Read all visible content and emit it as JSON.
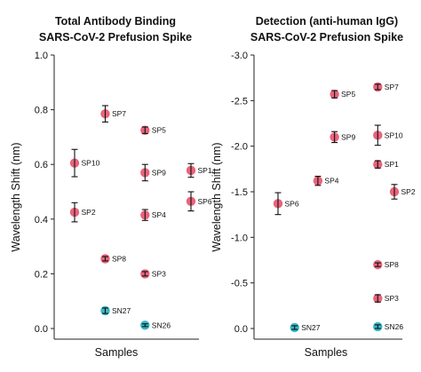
{
  "chart_data": [
    {
      "type": "scatter",
      "title": [
        "Total Antibody Binding",
        "SARS-CoV-2 Prefusion Spike"
      ],
      "xlabel": "Samples",
      "ylabel": "Wavelength Shift (nm)",
      "ylim": [
        0.0,
        1.0
      ],
      "yticks": [
        "0.0",
        "0.2",
        "0.4",
        "0.6",
        "0.8",
        "1.0"
      ],
      "reversed": false,
      "grid": false,
      "points": [
        {
          "label": "SP7",
          "x": 2,
          "y": 0.785,
          "err": 0.03,
          "color": "#e8647a"
        },
        {
          "label": "SP5",
          "x": 3.3,
          "y": 0.725,
          "err": 0.012,
          "color": "#e8647a"
        },
        {
          "label": "SP10",
          "x": 1,
          "y": 0.605,
          "err": 0.05,
          "color": "#e8647a"
        },
        {
          "label": "SP9",
          "x": 3.3,
          "y": 0.57,
          "err": 0.03,
          "color": "#e8647a"
        },
        {
          "label": "SP1",
          "x": 4.8,
          "y": 0.578,
          "err": 0.025,
          "color": "#e8647a"
        },
        {
          "label": "SP6",
          "x": 4.8,
          "y": 0.465,
          "err": 0.035,
          "color": "#e8647a"
        },
        {
          "label": "SP2",
          "x": 1,
          "y": 0.425,
          "err": 0.035,
          "color": "#e8647a"
        },
        {
          "label": "SP4",
          "x": 3.3,
          "y": 0.415,
          "err": 0.02,
          "color": "#e8647a"
        },
        {
          "label": "SP8",
          "x": 2,
          "y": 0.255,
          "err": 0.008,
          "color": "#e8647a"
        },
        {
          "label": "SP3",
          "x": 3.3,
          "y": 0.2,
          "err": 0.008,
          "color": "#e8647a"
        },
        {
          "label": "SN27",
          "x": 2,
          "y": 0.065,
          "err": 0.01,
          "color": "#37b8c6"
        },
        {
          "label": "SN26",
          "x": 3.3,
          "y": 0.012,
          "err": 0.005,
          "color": "#37b8c6"
        }
      ]
    },
    {
      "type": "scatter",
      "title": [
        "Detection (anti-human IgG)",
        "SARS-CoV-2 Prefusion Spike"
      ],
      "xlabel": "Samples",
      "ylabel": "Wavelength Shift (nm)",
      "ylim": [
        0.0,
        -3.0
      ],
      "yticks": [
        "0.0",
        "-0.5",
        "-1.0",
        "-1.5",
        "-2.0",
        "-2.5",
        "-3.0"
      ],
      "reversed": true,
      "grid": false,
      "points": [
        {
          "label": "SP7",
          "x": 4,
          "y": -2.65,
          "err": 0.03,
          "color": "#e8647a"
        },
        {
          "label": "SP5",
          "x": 2.7,
          "y": -2.57,
          "err": 0.04,
          "color": "#e8647a"
        },
        {
          "label": "SP9",
          "x": 2.7,
          "y": -2.1,
          "err": 0.06,
          "color": "#e8647a"
        },
        {
          "label": "SP10",
          "x": 4,
          "y": -2.12,
          "err": 0.11,
          "color": "#e8647a"
        },
        {
          "label": "SP1",
          "x": 4,
          "y": -1.8,
          "err": 0.04,
          "color": "#e8647a"
        },
        {
          "label": "SP4",
          "x": 2.2,
          "y": -1.62,
          "err": 0.05,
          "color": "#e8647a"
        },
        {
          "label": "SP2",
          "x": 4.5,
          "y": -1.5,
          "err": 0.08,
          "color": "#e8647a"
        },
        {
          "label": "SP6",
          "x": 1,
          "y": -1.37,
          "err": 0.12,
          "color": "#e8647a"
        },
        {
          "label": "SP8",
          "x": 4,
          "y": -0.7,
          "err": 0.02,
          "color": "#e8647a"
        },
        {
          "label": "SP3",
          "x": 4,
          "y": -0.33,
          "err": 0.04,
          "color": "#e8647a"
        },
        {
          "label": "SN27",
          "x": 1.5,
          "y": -0.01,
          "err": 0.02,
          "color": "#37b8c6"
        },
        {
          "label": "SN26",
          "x": 4,
          "y": -0.02,
          "err": 0.02,
          "color": "#37b8c6"
        }
      ]
    }
  ]
}
